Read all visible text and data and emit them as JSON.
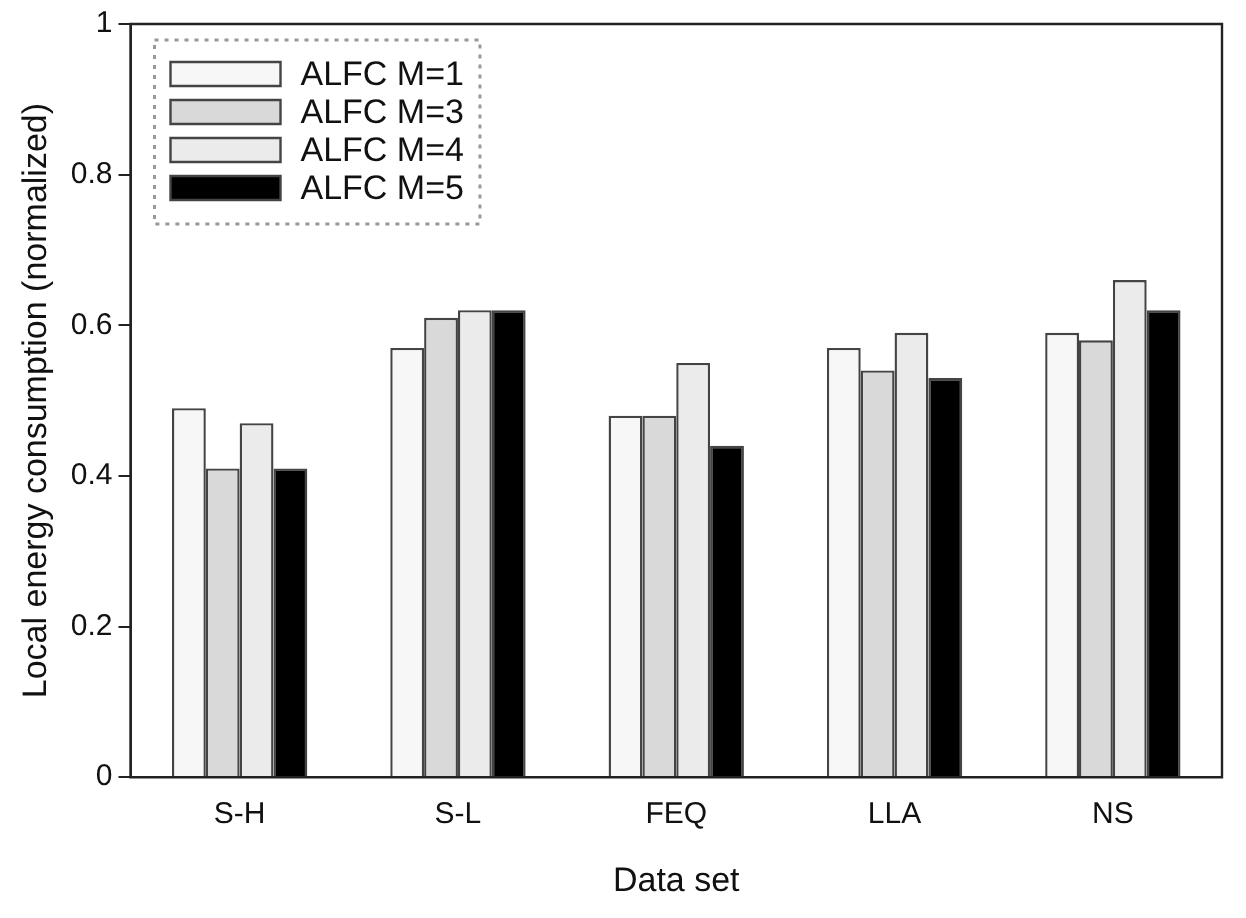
{
  "chart_data": {
    "type": "bar",
    "xlabel": "Data set",
    "ylabel": "Local energy consumption (normalized)",
    "categories": [
      "S-H",
      "S-L",
      "FEQ",
      "LLA",
      "NS"
    ],
    "series": [
      {
        "name": "ALFC M=1",
        "color": "#f7f7f7",
        "values": [
          0.49,
          0.57,
          0.48,
          0.57,
          0.59
        ]
      },
      {
        "name": "ALFC M=3",
        "color": "#d9d9d9",
        "values": [
          0.41,
          0.61,
          0.48,
          0.54,
          0.58
        ]
      },
      {
        "name": "ALFC M=4",
        "color": "#ebebeb",
        "values": [
          0.47,
          0.62,
          0.55,
          0.59,
          0.66
        ]
      },
      {
        "name": "ALFC M=5",
        "color": "#000000",
        "values": [
          0.41,
          0.62,
          0.44,
          0.53,
          0.62
        ]
      }
    ],
    "ylim": [
      0,
      1
    ],
    "yticks": [
      0,
      0.2,
      0.4,
      0.6,
      0.8,
      1
    ],
    "grid": false,
    "legend": "top left"
  }
}
